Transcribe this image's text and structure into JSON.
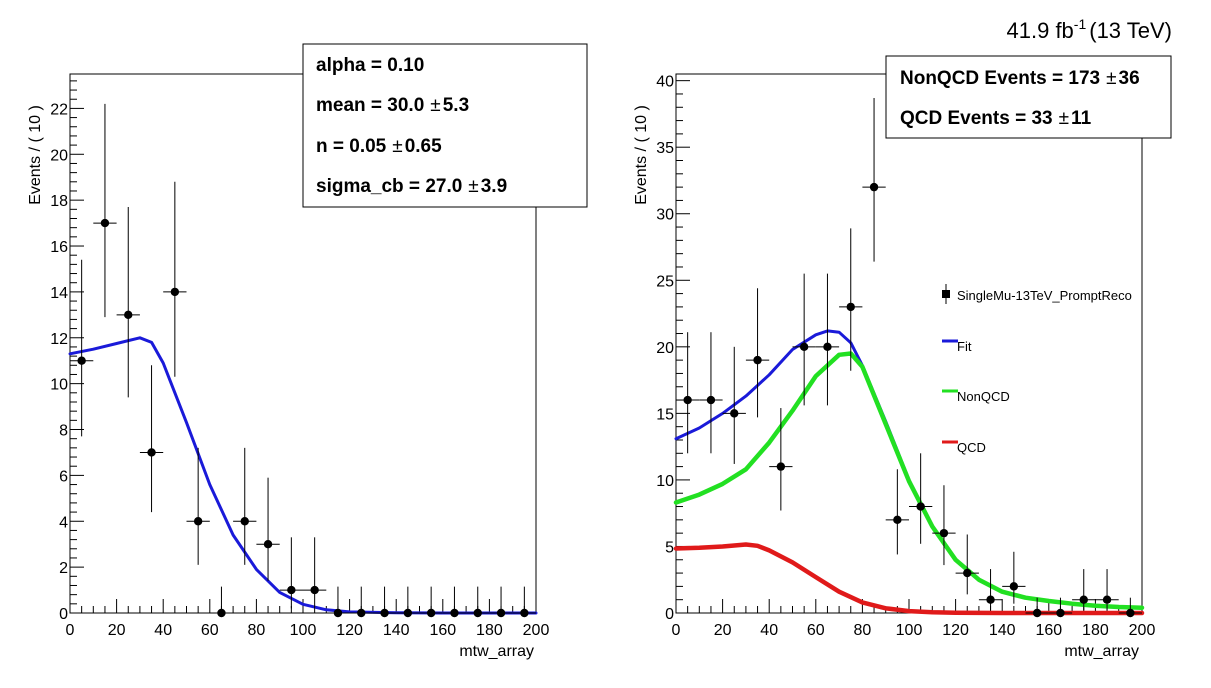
{
  "lumi": {
    "value": "41.9 fb",
    "exponent": "-1",
    "energy": "(13 TeV)"
  },
  "chart_data": [
    {
      "type": "scatter",
      "xlabel": "mtw_array",
      "ylabel": "Events / ( 10 )",
      "xlim": [
        0,
        200
      ],
      "ylim": [
        0,
        23.5
      ],
      "xticks": [
        0,
        20,
        40,
        60,
        80,
        100,
        120,
        140,
        160,
        180,
        200
      ],
      "yticks": [
        0,
        2,
        4,
        6,
        8,
        10,
        12,
        14,
        16,
        18,
        20,
        22
      ],
      "points": {
        "x": [
          5,
          15,
          25,
          35,
          45,
          55,
          65,
          75,
          85,
          95,
          105,
          115,
          125,
          135,
          145,
          155,
          165,
          175,
          185,
          195
        ],
        "y": [
          11,
          17,
          13,
          7,
          14,
          4,
          0,
          4,
          3,
          1,
          1,
          0,
          0,
          0,
          0,
          0,
          0,
          0,
          0,
          0
        ],
        "err_up": [
          4.4,
          5.2,
          4.7,
          3.8,
          4.8,
          3.2,
          1.15,
          3.2,
          2.9,
          2.3,
          2.3,
          1.15,
          1.15,
          1.15,
          1.15,
          1.15,
          1.15,
          1.15,
          1.15,
          1.15
        ],
        "err_down": [
          3.3,
          4.1,
          3.6,
          2.6,
          3.7,
          1.9,
          0,
          1.9,
          1.6,
          0.8,
          0.8,
          0,
          0,
          0,
          0,
          0,
          0,
          0,
          0,
          0
        ]
      },
      "series": [
        {
          "color": "#1a1ad9",
          "x": [
            0,
            10,
            20,
            30,
            35,
            40,
            50,
            60,
            70,
            80,
            90,
            100,
            110,
            120,
            140,
            160,
            180,
            200
          ],
          "y": [
            11.3,
            11.5,
            11.75,
            12.0,
            11.8,
            10.9,
            8.3,
            5.6,
            3.4,
            1.9,
            0.9,
            0.38,
            0.14,
            0.05,
            0.01,
            0.0,
            0.0,
            0.0
          ]
        }
      ],
      "stats": [
        {
          "label": "alpha = ",
          "value": " 0.10",
          "error": ""
        },
        {
          "label": "mean = ",
          "value": " 30.0",
          "error": "5.3"
        },
        {
          "label": "n = ",
          "value": " 0.05",
          "error": "0.65"
        },
        {
          "label": "sigma_cb = ",
          "value": " 27.0",
          "error": "3.9"
        }
      ]
    },
    {
      "type": "scatter",
      "xlabel": "mtw_array",
      "ylabel": "Events / ( 10 )",
      "xlim": [
        0,
        200
      ],
      "ylim": [
        0,
        40.5
      ],
      "xticks": [
        0,
        20,
        40,
        60,
        80,
        100,
        120,
        140,
        160,
        180,
        200
      ],
      "yticks": [
        0,
        5,
        10,
        15,
        20,
        25,
        30,
        35,
        40
      ],
      "points": {
        "x": [
          5,
          15,
          25,
          35,
          45,
          55,
          65,
          75,
          85,
          95,
          105,
          115,
          125,
          135,
          145,
          155,
          165,
          175,
          185,
          195
        ],
        "y": [
          16,
          16,
          15,
          19,
          11,
          20,
          20,
          23,
          32,
          7,
          8,
          6,
          3,
          1,
          2,
          0,
          0,
          1,
          1,
          0
        ],
        "err_up": [
          5.1,
          5.1,
          5.0,
          5.4,
          4.4,
          5.5,
          5.5,
          5.9,
          6.7,
          3.8,
          4.0,
          3.6,
          2.9,
          2.3,
          2.6,
          1.15,
          1.15,
          2.3,
          2.3,
          1.15
        ],
        "err_down": [
          4.0,
          4.0,
          3.8,
          4.3,
          3.3,
          4.4,
          4.4,
          4.8,
          5.6,
          2.6,
          2.8,
          2.4,
          1.6,
          0.8,
          1.3,
          0,
          0,
          0.8,
          0.8,
          0
        ]
      },
      "series": [
        {
          "name": "Fit",
          "color": "#1a1ad9",
          "x": [
            0,
            10,
            20,
            30,
            40,
            50,
            60,
            65,
            70,
            75,
            80,
            90,
            100,
            110,
            120,
            130,
            140,
            150,
            160,
            170,
            180,
            190,
            200
          ],
          "y": [
            13.1,
            13.9,
            15.0,
            16.3,
            17.9,
            19.8,
            20.9,
            21.2,
            21.1,
            20.3,
            18.6,
            14.4,
            10.0,
            6.5,
            4.0,
            2.5,
            1.6,
            1.15,
            0.9,
            0.7,
            0.55,
            0.45,
            0.4
          ]
        },
        {
          "name": "NonQCD",
          "color": "#22e022",
          "x": [
            0,
            10,
            20,
            30,
            40,
            50,
            60,
            70,
            75,
            80,
            90,
            100,
            110,
            120,
            130,
            140,
            150,
            160,
            170,
            180,
            190,
            200
          ],
          "y": [
            8.3,
            8.9,
            9.7,
            10.8,
            12.8,
            15.2,
            17.8,
            19.4,
            19.5,
            18.5,
            14.2,
            9.9,
            6.5,
            4.0,
            2.5,
            1.6,
            1.15,
            0.9,
            0.7,
            0.55,
            0.45,
            0.4
          ]
        },
        {
          "name": "QCD",
          "color": "#e01a1a",
          "x": [
            0,
            10,
            20,
            30,
            35,
            40,
            50,
            60,
            70,
            80,
            90,
            100,
            110,
            120,
            140,
            160,
            180,
            200
          ],
          "y": [
            4.85,
            4.9,
            5.0,
            5.15,
            5.05,
            4.7,
            3.8,
            2.7,
            1.6,
            0.8,
            0.35,
            0.14,
            0.05,
            0.02,
            0.0,
            0.0,
            0.0,
            0.0
          ]
        }
      ],
      "legend": [
        {
          "label": "SingleMu-13TeV_PromptReco",
          "kind": "marker"
        },
        {
          "label": "Fit",
          "kind": "line",
          "color": "#1a1ad9"
        },
        {
          "label": "NonQCD",
          "kind": "line",
          "color": "#22e022"
        },
        {
          "label": "QCD",
          "kind": "line",
          "color": "#e01a1a"
        }
      ],
      "stats": [
        {
          "label": "NonQCD Events = ",
          "value": " 173",
          "error": "36"
        },
        {
          "label": "QCD Events = ",
          "value": " 33",
          "error": "11"
        }
      ]
    }
  ]
}
